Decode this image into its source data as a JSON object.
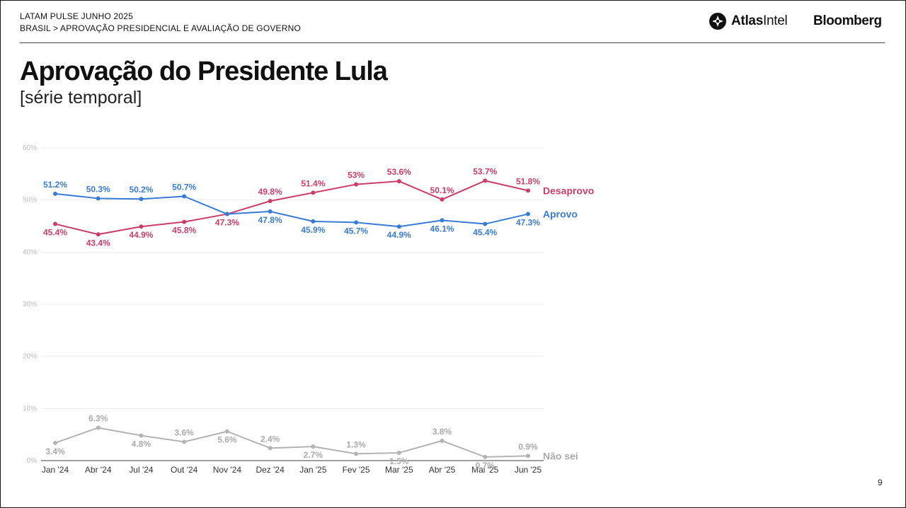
{
  "header": {
    "line1": "LATAM PULSE JUNHO 2025",
    "line2": "BRASIL > APROVAÇÃO PRESIDENCIAL E AVALIAÇÃO DE GOVERNO",
    "logo_atlas_bold": "Atlas",
    "logo_atlas_rest": "Intel",
    "logo_bloomberg": "Bloomberg"
  },
  "title": "Aprovação do Presidente Lula",
  "subtitle": "[série temporal]",
  "page_number": "9",
  "colors": {
    "desaprovo": "#cc3d68",
    "aprovo": "#3a7bd5",
    "nao_sei": "#b3b3b3"
  },
  "chart_data": {
    "type": "line",
    "categories": [
      "Jan '24",
      "Abr '24",
      "Jul '24",
      "Out '24",
      "Nov '24",
      "Dez '24",
      "Jan '25",
      "Fev '25",
      "Mar '25",
      "Abr '25",
      "Mai '25",
      "Jun '25"
    ],
    "y_tick_labels": [
      "0%",
      "10%",
      "20%",
      "30%",
      "40%",
      "50%",
      "60%"
    ],
    "ylim": [
      0,
      60
    ],
    "grid": true,
    "series": [
      {
        "name": "Desaprovo",
        "color": "#cc3d68",
        "values": [
          45.4,
          43.4,
          44.9,
          45.8,
          47.3,
          49.8,
          51.4,
          53,
          53.6,
          50.1,
          53.7,
          51.8
        ],
        "labels": [
          "45.4%",
          "43.4%",
          "44.9%",
          "45.8%",
          "47.3%",
          "49.8%",
          "51.4%",
          "53%",
          "53.6%",
          "50.1%",
          "53.7%",
          "51.8%"
        ]
      },
      {
        "name": "Aprovo",
        "color": "#3a7bd5",
        "values": [
          51.2,
          50.3,
          50.2,
          50.7,
          47.3,
          47.8,
          45.9,
          45.7,
          44.9,
          46.1,
          45.4,
          47.3
        ],
        "labels": [
          "51.2%",
          "50.3%",
          "50.2%",
          "50.7%",
          null,
          "47.8%",
          "45.9%",
          "45.7%",
          "44.9%",
          "46.1%",
          "45.4%",
          "47.3%"
        ]
      },
      {
        "name": "Não sei",
        "color": "#b3b3b3",
        "values": [
          3.4,
          6.3,
          4.8,
          3.6,
          5.6,
          2.4,
          2.7,
          1.3,
          1.5,
          3.8,
          0.7,
          0.9
        ],
        "labels": [
          "3.4%",
          "6.3%",
          "4.8%",
          "3.6%",
          "5.6%",
          "2.4%",
          "2.7%",
          "1.3%",
          "1.5%",
          "3.8%",
          "0.7%",
          "0.9%"
        ]
      }
    ]
  }
}
